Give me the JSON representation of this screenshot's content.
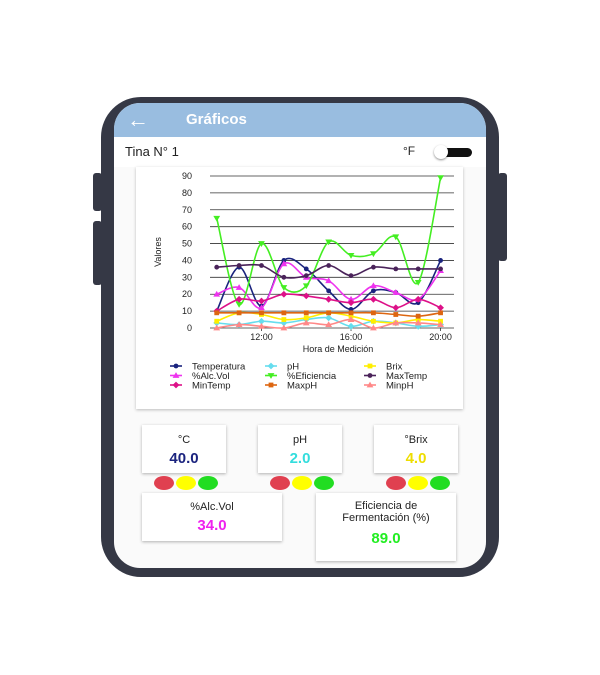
{
  "app": {
    "title": "Gráficos"
  },
  "header": {
    "tank_label": "Tina N° 1",
    "unit_label": "°F"
  },
  "colors": {
    "appbar": "#99bde0",
    "red": "#e04050",
    "yellow": "#ffff00",
    "green": "#22dd22"
  },
  "chart_data": {
    "type": "line",
    "xlabel": "Hora de Medición",
    "ylabel": "Valores",
    "x_ticks": [
      "12:00",
      "16:00",
      "20:00"
    ],
    "y_ticks": [
      "0",
      "10",
      "20",
      "30",
      "40",
      "50",
      "60",
      "70",
      "80",
      "90"
    ],
    "ylim": [
      0,
      90
    ],
    "xlim": [
      9.7,
      20.6
    ],
    "grid": true,
    "legend_position": "bottom",
    "series": [
      {
        "name": "Temperatura",
        "color": "#1a237e",
        "marker": "circle",
        "x": [
          10,
          11,
          12,
          13,
          14,
          15,
          16,
          17,
          18,
          19,
          20
        ],
        "values": [
          10,
          36,
          13,
          40,
          35,
          22,
          11,
          22,
          21,
          15,
          40
        ]
      },
      {
        "name": "pH",
        "color": "#66ddee",
        "marker": "diamond",
        "x": [
          10,
          11,
          12,
          13,
          14,
          15,
          16,
          17,
          18,
          19,
          20
        ],
        "values": [
          3,
          2,
          4,
          3,
          5,
          6,
          1,
          4,
          3,
          1,
          2
        ]
      },
      {
        "name": "Brix",
        "color": "#ffee00",
        "marker": "square",
        "x": [
          10,
          11,
          12,
          13,
          14,
          15,
          16,
          17,
          18,
          19,
          20
        ],
        "values": [
          4,
          9,
          8,
          5,
          6,
          9,
          7,
          4,
          3,
          5,
          4
        ]
      },
      {
        "name": "%Alc.Vol",
        "color": "#ee33ee",
        "marker": "triangle-up",
        "x": [
          10,
          11,
          12,
          13,
          14,
          15,
          16,
          17,
          18,
          19,
          20
        ],
        "values": [
          20,
          24,
          12,
          38,
          30,
          28,
          17,
          25,
          21,
          17,
          34
        ]
      },
      {
        "name": "%Eficiencia",
        "color": "#44ee22",
        "marker": "triangle-down",
        "x": [
          10,
          11,
          12,
          13,
          14,
          15,
          16,
          17,
          18,
          19,
          20
        ],
        "values": [
          65,
          14,
          50,
          24,
          25,
          51,
          43,
          44,
          54,
          27,
          89
        ]
      },
      {
        "name": "MaxTemp",
        "color": "#4a235a",
        "marker": "circle",
        "x": [
          10,
          11,
          12,
          13,
          14,
          15,
          16,
          17,
          18,
          19,
          20
        ],
        "values": [
          36,
          37,
          37,
          30,
          31,
          37,
          31,
          36,
          35,
          35,
          35
        ]
      },
      {
        "name": "MinTemp",
        "color": "#dd1188",
        "marker": "diamond",
        "x": [
          10,
          11,
          12,
          13,
          14,
          15,
          16,
          17,
          18,
          19,
          20
        ],
        "values": [
          10,
          17,
          16,
          20,
          19,
          17,
          15,
          17,
          12,
          17,
          12
        ]
      },
      {
        "name": "MaxpH",
        "color": "#dd6611",
        "marker": "square",
        "x": [
          10,
          11,
          12,
          13,
          14,
          15,
          16,
          17,
          18,
          19,
          20
        ],
        "values": [
          9,
          9,
          9,
          9,
          9,
          9,
          9,
          9,
          8,
          7,
          9
        ]
      },
      {
        "name": "MinpH",
        "color": "#ff8888",
        "marker": "triangle-up",
        "x": [
          10,
          11,
          12,
          13,
          14,
          15,
          16,
          17,
          18,
          19,
          20
        ],
        "values": [
          0,
          2,
          1,
          0,
          3,
          2,
          5,
          0,
          3,
          3,
          2
        ]
      }
    ]
  },
  "metrics": {
    "temp": {
      "label": "°C",
      "value": "40.0",
      "color": "#1a237e"
    },
    "ph": {
      "label": "pH",
      "value": "2.0",
      "color": "#33dddd"
    },
    "brix": {
      "label": "°Brix",
      "value": "4.0",
      "color": "#eedd00"
    },
    "alc": {
      "label": "%Alc.Vol",
      "value": "34.0",
      "color": "#ee22ee"
    },
    "eff": {
      "label": "Eficiencia de Fermentación (%)",
      "value": "89.0",
      "color": "#22ee22"
    }
  }
}
